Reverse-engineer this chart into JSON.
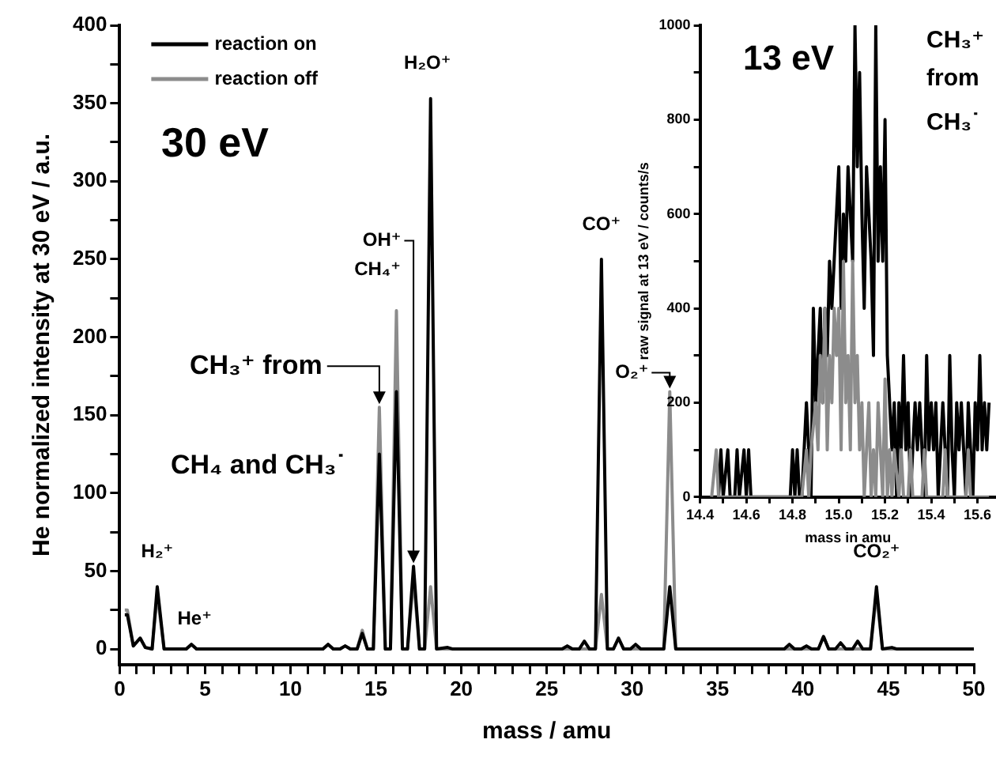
{
  "chart_data": [
    {
      "type": "line",
      "xlabel": "mass / amu",
      "ylabel": "He normalized intensity at 30 eV / a.u.",
      "xlim": [
        0,
        50
      ],
      "ylim": [
        -10,
        400
      ],
      "xticks": [
        0,
        {
          "value": 1,
          "label": null
        },
        {
          "value": 2,
          "label": null
        },
        {
          "value": 3,
          "label": null
        },
        {
          "value": 4,
          "label": null
        },
        5,
        {
          "value": 6,
          "label": null
        },
        {
          "value": 7,
          "label": null
        },
        {
          "value": 8,
          "label": null
        },
        {
          "value": 9,
          "label": null
        },
        10,
        {
          "value": 11,
          "label": null
        },
        {
          "value": 12,
          "label": null
        },
        {
          "value": 13,
          "label": null
        },
        {
          "value": 14,
          "label": null
        },
        15,
        {
          "value": 16,
          "label": null
        },
        {
          "value": 17,
          "label": null
        },
        {
          "value": 18,
          "label": null
        },
        {
          "value": 19,
          "label": null
        },
        20,
        {
          "value": 21,
          "label": null
        },
        {
          "value": 22,
          "label": null
        },
        {
          "value": 23,
          "label": null
        },
        {
          "value": 24,
          "label": null
        },
        25,
        {
          "value": 26,
          "label": null
        },
        {
          "value": 27,
          "label": null
        },
        {
          "value": 28,
          "label": null
        },
        {
          "value": 29,
          "label": null
        },
        30,
        {
          "value": 31,
          "label": null
        },
        {
          "value": 32,
          "label": null
        },
        {
          "value": 33,
          "label": null
        },
        {
          "value": 34,
          "label": null
        },
        35,
        {
          "value": 36,
          "label": null
        },
        {
          "value": 37,
          "label": null
        },
        {
          "value": 38,
          "label": null
        },
        {
          "value": 39,
          "label": null
        },
        40,
        {
          "value": 41,
          "label": null
        },
        {
          "value": 42,
          "label": null
        },
        {
          "value": 43,
          "label": null
        },
        {
          "value": 44,
          "label": null
        },
        45,
        {
          "value": 46,
          "label": null
        },
        {
          "value": 47,
          "label": null
        },
        {
          "value": 48,
          "label": null
        },
        {
          "value": 49,
          "label": null
        },
        50
      ],
      "yticks": [
        0,
        {
          "value": 25,
          "label": null
        },
        50,
        {
          "value": 75,
          "label": null
        },
        100,
        {
          "value": 125,
          "label": null
        },
        150,
        {
          "value": 175,
          "label": null
        },
        200,
        {
          "value": 225,
          "label": null
        },
        250,
        {
          "value": 275,
          "label": null
        },
        300,
        {
          "value": 325,
          "label": null
        },
        350,
        {
          "value": 375,
          "label": null
        },
        400
      ],
      "grid": false,
      "legend": "top left",
      "marker": "none",
      "line_style": "solid",
      "series": [
        {
          "name": "reaction off",
          "color": "#8c8c8c",
          "x": [
            0.3,
            0.45,
            0.8,
            1.2,
            1.5,
            1.9,
            2.2,
            2.6,
            3.9,
            4.2,
            4.5,
            11.9,
            12.2,
            12.5,
            12.9,
            13.2,
            13.5,
            13.9,
            14.2,
            14.5,
            14.85,
            15.2,
            15.55,
            15.85,
            16.2,
            16.55,
            16.85,
            17.2,
            17.55,
            17.85,
            18.2,
            18.55,
            27.85,
            28.2,
            28.55,
            28.9,
            29.2,
            29.5,
            31.85,
            32.2,
            32.55,
            40.9,
            41.2,
            41.5,
            43.95,
            44.3,
            44.65,
            50
          ],
          "values": [
            25,
            25,
            2,
            7,
            1,
            0,
            35,
            0,
            0,
            3,
            0,
            0,
            3,
            0,
            0,
            2,
            0,
            0,
            12,
            0,
            0,
            155,
            0,
            0,
            217,
            0,
            0,
            45,
            0,
            0,
            40,
            0,
            0,
            35,
            0,
            0,
            7,
            0,
            0,
            165,
            0,
            0,
            8,
            0,
            0,
            35,
            0,
            0
          ]
        },
        {
          "name": "reaction on",
          "color": "#000000",
          "x": [
            0.3,
            0.45,
            0.8,
            1.2,
            1.5,
            1.9,
            2.2,
            2.6,
            3.9,
            4.2,
            4.5,
            11.9,
            12.2,
            12.5,
            12.9,
            13.2,
            13.5,
            13.9,
            14.2,
            14.5,
            14.85,
            15.2,
            15.55,
            15.85,
            16.2,
            16.55,
            16.85,
            17.2,
            17.55,
            17.85,
            18.2,
            18.55,
            19.2,
            19.5,
            25.9,
            26.2,
            26.5,
            26.9,
            27.2,
            27.5,
            27.85,
            28.2,
            28.55,
            28.9,
            29.2,
            29.5,
            29.9,
            30.2,
            30.5,
            31.85,
            32.2,
            32.55,
            38.9,
            39.2,
            39.5,
            39.9,
            40.2,
            40.5,
            40.9,
            41.2,
            41.5,
            41.9,
            42.2,
            42.5,
            42.9,
            43.2,
            43.5,
            43.95,
            44.3,
            44.65,
            45.2,
            45.5,
            50
          ],
          "values": [
            22,
            22,
            2,
            7,
            1,
            0,
            40,
            0,
            0,
            3,
            0,
            0,
            3,
            0,
            0,
            2,
            0,
            0,
            10,
            0,
            0,
            125,
            0,
            0,
            165,
            0,
            0,
            53,
            0,
            0,
            353,
            0,
            1,
            0,
            0,
            2,
            0,
            0,
            5,
            0,
            0,
            250,
            0,
            0,
            7,
            0,
            0,
            3,
            0,
            0,
            40,
            0,
            0,
            3,
            0,
            0,
            2,
            0,
            0,
            8,
            0,
            0,
            4,
            0,
            0,
            5,
            0,
            0,
            40,
            0,
            1,
            0,
            0
          ]
        }
      ],
      "annotations": [
        "30 eV",
        {
          "text": "H₂⁺",
          "x": 2.2,
          "y": 40
        },
        {
          "text": "He⁺",
          "x": 4.2,
          "y": 3
        },
        {
          "text": "CH₃⁺ from",
          "x": 15.2,
          "y": 155
        },
        "CH₄ and CH₃˙",
        {
          "text": "CH₄⁺",
          "x": 16.2,
          "y": 217
        },
        {
          "text": "OH⁺",
          "x": 17.2,
          "y": 53
        },
        {
          "text": "H₂O⁺",
          "x": 18.2,
          "y": 353
        },
        {
          "text": "CO⁺",
          "x": 28.2,
          "y": 250
        },
        {
          "text": "O₂⁺",
          "x": 32.2,
          "y": 165
        },
        {
          "text": "CO₂⁺",
          "x": 44.3,
          "y": 40
        }
      ]
    },
    {
      "type": "line",
      "xlabel": "mass in amu",
      "ylabel": "raw signal at 13 eV / counts/s",
      "xlim": [
        14.4,
        15.68
      ],
      "ylim": [
        0,
        1000
      ],
      "xticks": [
        14.4,
        {
          "value": 14.5,
          "label": null
        },
        14.6,
        {
          "value": 14.7,
          "label": null
        },
        14.8,
        {
          "value": 14.9,
          "label": null
        },
        {
          "value": 15,
          "label": "15.0"
        },
        {
          "value": 15.1,
          "label": null
        },
        15.2,
        {
          "value": 15.3,
          "label": null
        },
        15.4,
        {
          "value": 15.5,
          "label": null
        },
        15.6
      ],
      "yticks": [
        0,
        {
          "value": 100,
          "label": null
        },
        200,
        {
          "value": 300,
          "label": null
        },
        400,
        {
          "value": 500,
          "label": null
        },
        600,
        {
          "value": 700,
          "label": null
        },
        800,
        {
          "value": 900,
          "label": null
        },
        1000
      ],
      "grid": false,
      "marker": "none",
      "line_style": "solid",
      "series": [
        {
          "color": "#000000",
          "x": [
            14.45,
            14.48,
            14.49,
            14.5,
            14.52,
            14.53,
            14.55,
            14.56,
            14.57,
            14.59,
            14.6,
            14.61,
            14.62,
            14.79,
            14.8,
            14.81,
            14.82,
            14.83,
            14.84,
            14.86,
            14.87,
            14.88,
            14.89,
            14.9,
            14.91,
            14.92,
            14.93,
            14.94,
            14.95,
            14.96,
            14.97,
            14.98,
            14.99,
            15.0,
            15.01,
            15.02,
            15.03,
            15.04,
            15.05,
            15.06,
            15.07,
            15.08,
            15.09,
            15.1,
            15.11,
            15.12,
            15.13,
            15.14,
            15.15,
            15.16,
            15.17,
            15.18,
            15.19,
            15.2,
            15.21,
            15.22,
            15.23,
            15.24,
            15.25,
            15.26,
            15.27,
            15.28,
            15.29,
            15.3,
            15.31,
            15.32,
            15.33,
            15.34,
            15.35,
            15.36,
            15.37,
            15.38,
            15.39,
            15.4,
            15.41,
            15.42,
            15.43,
            15.44,
            15.45,
            15.46,
            15.47,
            15.48,
            15.49,
            15.5,
            15.51,
            15.52,
            15.53,
            15.54,
            15.55,
            15.56,
            15.57,
            15.58,
            15.59,
            15.6,
            15.61,
            15.62,
            15.63,
            15.64,
            15.65
          ],
          "values": [
            0,
            0,
            100,
            0,
            100,
            0,
            0,
            100,
            0,
            100,
            0,
            100,
            0,
            0,
            100,
            0,
            100,
            0,
            0,
            200,
            100,
            0,
            400,
            200,
            300,
            400,
            200,
            400,
            300,
            500,
            400,
            500,
            600,
            700,
            400,
            600,
            500,
            700,
            600,
            500,
            1000,
            700,
            900,
            600,
            400,
            700,
            600,
            500,
            300,
            1000,
            500,
            700,
            500,
            800,
            300,
            200,
            100,
            200,
            0,
            200,
            100,
            300,
            100,
            200,
            0,
            100,
            200,
            100,
            200,
            100,
            0,
            300,
            100,
            200,
            100,
            200,
            0,
            100,
            200,
            100,
            0,
            300,
            100,
            0,
            200,
            100,
            200,
            100,
            0,
            200,
            100,
            0,
            200,
            100,
            300,
            100,
            200,
            100,
            200
          ]
        },
        {
          "color": "#8c8c8c",
          "x": [
            14.45,
            14.47,
            14.48,
            14.84,
            14.86,
            14.87,
            14.88,
            14.9,
            14.91,
            14.92,
            14.93,
            14.94,
            14.95,
            14.96,
            14.97,
            14.98,
            14.99,
            15.0,
            15.01,
            15.02,
            15.03,
            15.04,
            15.05,
            15.06,
            15.07,
            15.08,
            15.09,
            15.1,
            15.11,
            15.12,
            15.13,
            15.14,
            15.15,
            15.16,
            15.17,
            15.18,
            15.19,
            15.2,
            15.21,
            15.22,
            15.23,
            15.24,
            15.26,
            15.27,
            15.28,
            15.3,
            15.31,
            15.32,
            15.36,
            15.37,
            15.38,
            15.45,
            15.46,
            15.47,
            15.55,
            15.56,
            15.57,
            15.65
          ],
          "values": [
            0,
            100,
            0,
            0,
            100,
            0,
            100,
            200,
            100,
            300,
            200,
            400,
            100,
            300,
            200,
            400,
            300,
            400,
            100,
            500,
            200,
            300,
            100,
            500,
            200,
            300,
            100,
            200,
            0,
            100,
            200,
            0,
            100,
            0,
            200,
            100,
            0,
            250,
            0,
            100,
            0,
            100,
            0,
            100,
            0,
            0,
            100,
            0,
            0,
            100,
            0,
            0,
            100,
            0,
            0,
            100,
            0,
            0
          ]
        }
      ],
      "annotations": [
        "13 eV",
        "CH₃⁺",
        "from",
        "CH₃˙"
      ]
    }
  ]
}
